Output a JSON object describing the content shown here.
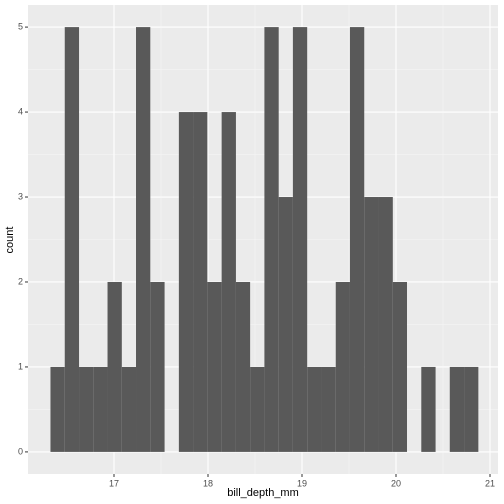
{
  "chart_data": {
    "type": "histogram",
    "x_label": "bill_depth_mm",
    "y_label": "count",
    "bins": [
      16.324,
      16.476,
      16.628,
      16.779,
      16.931,
      17.083,
      17.234,
      17.386,
      17.538,
      17.69,
      17.841,
      17.993,
      18.145,
      18.297,
      18.448,
      18.6,
      18.752,
      18.903,
      19.055,
      19.207,
      19.359,
      19.51,
      19.662,
      19.814,
      19.966,
      20.117,
      20.269,
      20.421,
      20.572,
      20.724,
      20.876
    ],
    "values": [
      1,
      5,
      1,
      1,
      2,
      1,
      5,
      2,
      0,
      4,
      4,
      2,
      4,
      2,
      1,
      5,
      3,
      5,
      1,
      1,
      2,
      5,
      3,
      3,
      2,
      0,
      1,
      0,
      1,
      1
    ],
    "color": "#595959",
    "background": "#ebebeb",
    "grid": true,
    "xlim": [
      16.085,
      21.085
    ],
    "xticks": [
      17,
      18,
      19,
      20,
      21
    ],
    "ylim": [
      -0.26,
      5.26
    ],
    "yticks": [
      0,
      1,
      2,
      3,
      4,
      5
    ]
  }
}
